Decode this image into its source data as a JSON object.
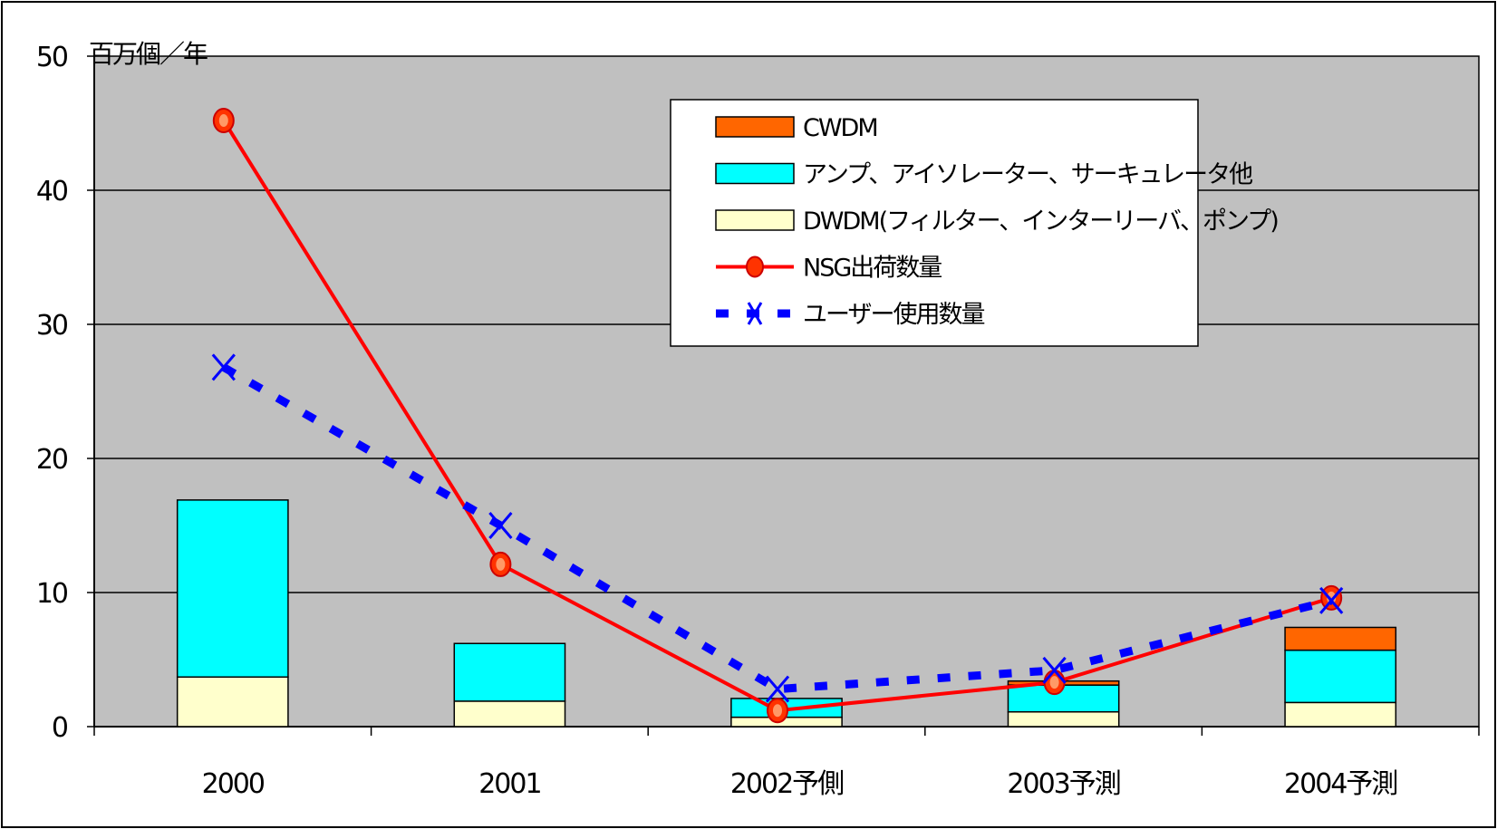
{
  "chart_data": {
    "type": "bar",
    "stacked": true,
    "categories": [
      "2000",
      "2001",
      "2002予側",
      "2003予測",
      "2004予測"
    ],
    "ylabel": "百万個／年",
    "ylim": [
      0,
      50
    ],
    "yticks": [
      0,
      10,
      20,
      30,
      40,
      50
    ],
    "grid": true,
    "legend_position": "top-right",
    "series": [
      {
        "name": "CWDM",
        "kind": "bar",
        "color": "#ff6600",
        "values": [
          0,
          0,
          0,
          0.3,
          1.7
        ]
      },
      {
        "name": "アンプ、アイソレーター、サーキュレータ他",
        "kind": "bar",
        "color": "#00ffff",
        "values": [
          13.2,
          4.3,
          1.4,
          2.0,
          3.9
        ]
      },
      {
        "name": "DWDM(フィルター、インターリーバ、ポンプ)",
        "kind": "bar",
        "color": "#ffffcc",
        "values": [
          3.7,
          1.9,
          0.7,
          1.1,
          1.8
        ]
      },
      {
        "name": "NSG出荷数量",
        "kind": "line",
        "color": "#ff0000",
        "marker_color": "#ff3300",
        "values": [
          45.2,
          12.1,
          1.2,
          3.3,
          9.6
        ]
      },
      {
        "name": "ユーザー使用数量",
        "kind": "line",
        "style": "dotted",
        "color": "#0000ff",
        "values": [
          26.8,
          15.0,
          2.8,
          4.2,
          9.4
        ]
      }
    ]
  }
}
